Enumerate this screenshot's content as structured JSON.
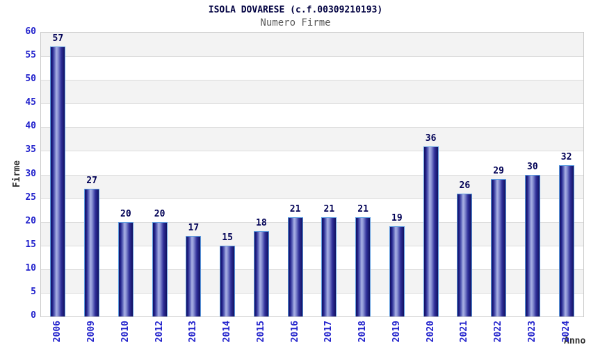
{
  "chart_data": {
    "type": "bar",
    "title": "ISOLA DOVARESE (c.f.00309210193)",
    "subtitle": "Numero Firme",
    "xlabel": "Anno",
    "ylabel": "Firme",
    "categories": [
      "2006",
      "2009",
      "2010",
      "2012",
      "2013",
      "2014",
      "2015",
      "2016",
      "2017",
      "2018",
      "2019",
      "2020",
      "2021",
      "2022",
      "2023",
      "2024"
    ],
    "values": [
      57,
      27,
      20,
      20,
      17,
      15,
      18,
      21,
      21,
      21,
      19,
      36,
      26,
      29,
      30,
      32
    ],
    "ylim": [
      0,
      60
    ],
    "ytick_step": 5,
    "yticks": [
      0,
      5,
      10,
      15,
      20,
      25,
      30,
      35,
      40,
      45,
      50,
      55,
      60
    ],
    "grid": true,
    "legend": "none",
    "layout_hints": {
      "bands": "alternating gray/white every 5 units, gray at top band 55-60",
      "bar_style": "vertical cylinder gradient, light blue outline",
      "x_labels": "rotated 90deg, read bottom-to-top"
    },
    "colors": {
      "bar_edge_dark": "#101060",
      "bar_center_light": "#aab1e4",
      "bar_outline": "#5e9de0",
      "tick_label_blue": "#2222cc",
      "value_label": "#000055",
      "band_gray": "#f3f3f3",
      "gridline": "#dcdcdc",
      "plot_border": "#c9c9c9",
      "title": "#000040",
      "subtitle": "#5a5a5a",
      "axis_title": "#303030",
      "background": "#ffffff"
    }
  }
}
